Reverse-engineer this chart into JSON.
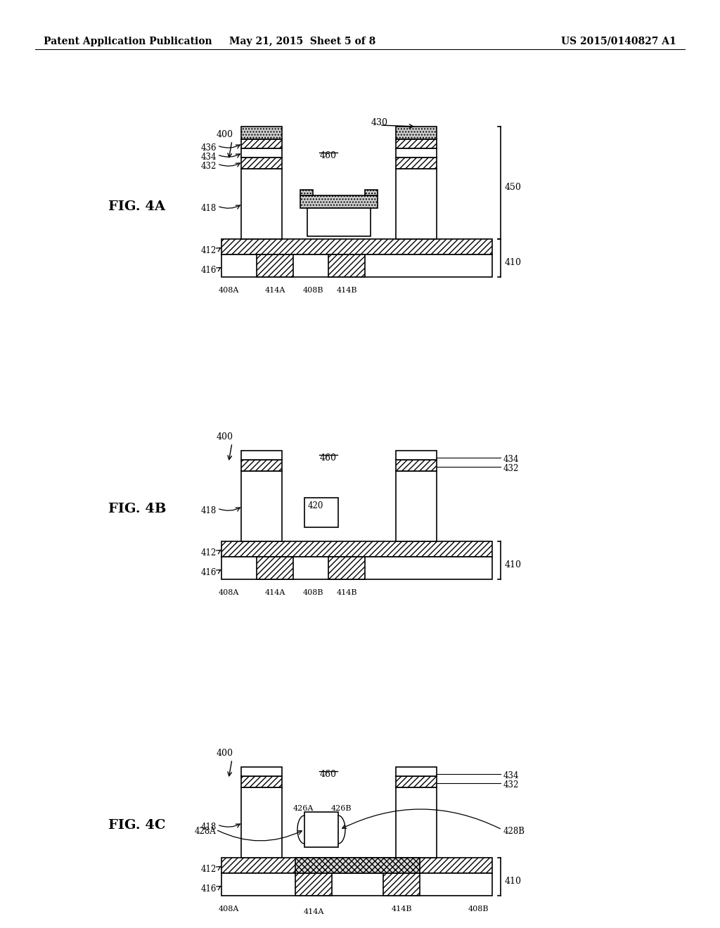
{
  "header_left": "Patent Application Publication",
  "header_mid": "May 21, 2015  Sheet 5 of 8",
  "header_right": "US 2015/0140827 A1",
  "background": "#ffffff",
  "line_color": "#000000"
}
